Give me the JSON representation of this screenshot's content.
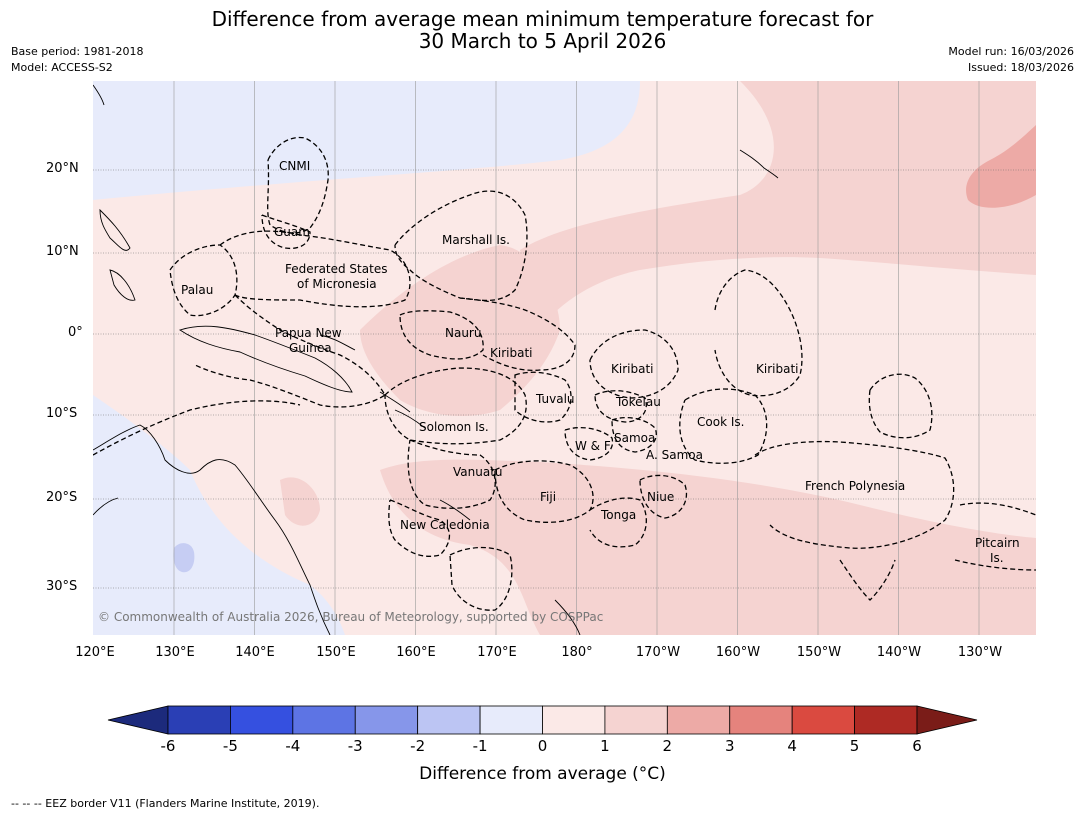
{
  "title_line1": "Difference from average mean minimum temperature forecast for",
  "title_line2": "30 March to 5 April 2026",
  "meta_left": [
    "Base period: 1981-2018",
    "Model: ACCESS-S2"
  ],
  "meta_right": [
    "Model run: 16/03/2026",
    "Issued: 18/03/2026"
  ],
  "lat_labels": [
    "20°N",
    "10°N",
    "0°",
    "10°S",
    "20°S",
    "30°S"
  ],
  "lon_labels": [
    "120°E",
    "130°E",
    "140°E",
    "150°E",
    "160°E",
    "170°E",
    "180°",
    "170°W",
    "160°W",
    "150°W",
    "140°W",
    "130°W"
  ],
  "places": [
    "CNMI",
    "Guam",
    "Marshall Is.",
    "Palau",
    "Federated States",
    "of Micronesia",
    "Papua New",
    "Guinea",
    "Nauru",
    "Kiribati",
    "Kiribati",
    "Kiribati",
    "Tuvalu",
    "Tokelau",
    "Solomon Is.",
    "Cook Is.",
    "Samoa",
    "W & F",
    "A. Samoa",
    "Vanuatu",
    "Fiji",
    "Niue",
    "French Polynesia",
    "Tonga",
    "New Caledonia",
    "Pitcairn",
    "Is."
  ],
  "copyright": "© Commonwealth of Australia 2026, Bureau of Meteorology, supported by COSPPac",
  "colorbar": {
    "ticks": [
      "-6",
      "-5",
      "-4",
      "-3",
      "-2",
      "-1",
      "0",
      "1",
      "2",
      "3",
      "4",
      "5",
      "6"
    ],
    "colors": [
      "#2a3fb5",
      "#3550e0",
      "#5d74e4",
      "#8696ea",
      "#bcc5f3",
      "#e7ebfb",
      "#fbe9e7",
      "#f5d3d1",
      "#edaaa6",
      "#e5837d",
      "#da4a40",
      "#ae2a24"
    ],
    "under_color": "#1c2a7c",
    "over_color": "#7a1c18",
    "label": "Difference from average (°C)"
  },
  "footnote": "--  --  -- EEZ border V11 (Flanders Marine Institute, 2019)."
}
